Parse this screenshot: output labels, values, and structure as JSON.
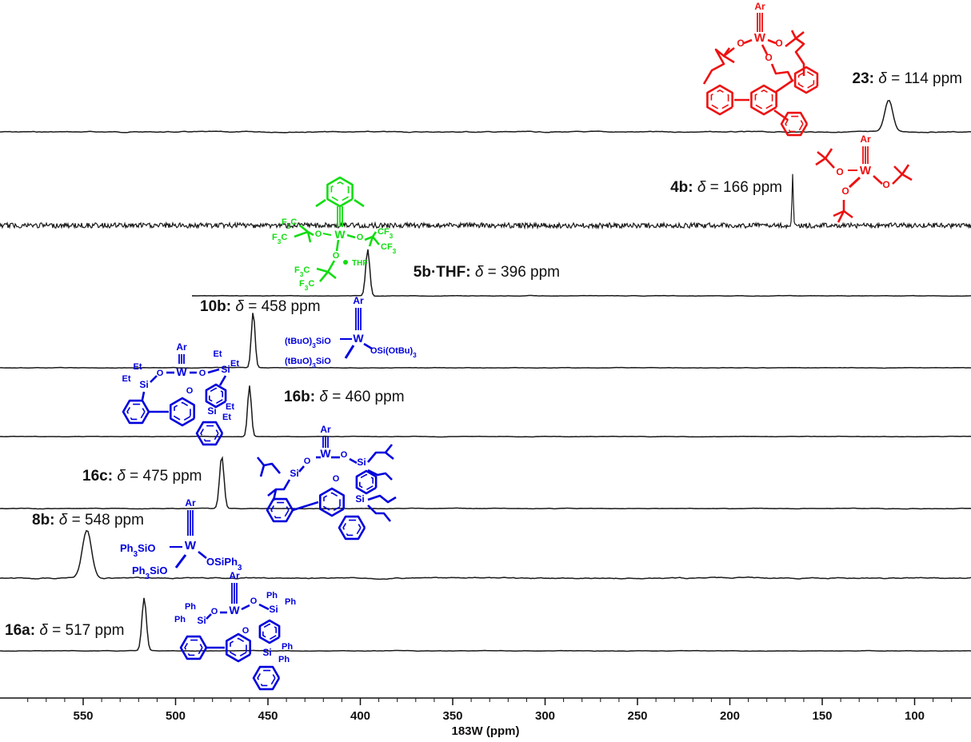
{
  "chart_data": {
    "type": "line",
    "title": "",
    "xlabel": "183W (ppm)",
    "ylabel": "",
    "xlim": [
      590,
      72
    ],
    "x_ticks": [
      550,
      500,
      450,
      400,
      350,
      300,
      250,
      200,
      150,
      100
    ],
    "grid": false,
    "colors": {
      "trace": "#1a1a1a",
      "red": "#ee1111",
      "green": "#11dd11",
      "blue": "#0000dd"
    },
    "series": [
      {
        "name": "23",
        "shift": "114",
        "peak_ppm": 114,
        "delta": "δ",
        "value_text": " = 114 ppm",
        "compound": "23:",
        "color": "red",
        "peak_width": 2.2,
        "peak_height": 40,
        "noise": 1.5
      },
      {
        "name": "4b",
        "shift": "166",
        "peak_ppm": 166,
        "delta": "δ",
        "value_text": " = 166 ppm",
        "compound": "4b:",
        "color": "red",
        "peak_width": 0.35,
        "peak_height": 66,
        "noise": 3.2
      },
      {
        "name": "5b·THF",
        "shift": "396",
        "peak_ppm": 396,
        "delta": "δ",
        "value_text": " = 396 ppm",
        "compound": "5b·THF:",
        "color": "green",
        "peak_width": 1.1,
        "peak_height": 58,
        "noise": 0.8
      },
      {
        "name": "10b",
        "shift": "458",
        "peak_ppm": 458,
        "delta": "δ",
        "value_text": " = 458 ppm",
        "compound": "10b:",
        "color": "blue",
        "peak_width": 1.0,
        "peak_height": 70,
        "noise": 0.8
      },
      {
        "name": "16b",
        "shift": "460",
        "peak_ppm": 460,
        "delta": "δ",
        "value_text": " = 460 ppm",
        "compound": "16b:",
        "color": "blue",
        "peak_width": 1.0,
        "peak_height": 64,
        "noise": 0.8
      },
      {
        "name": "16c",
        "shift": "475",
        "peak_ppm": 475,
        "delta": "δ",
        "value_text": " = 475 ppm",
        "compound": "16c:",
        "color": "blue",
        "peak_width": 1.2,
        "peak_height": 66,
        "noise": 1.0
      },
      {
        "name": "8b",
        "shift": "548",
        "peak_ppm": 548,
        "delta": "δ",
        "value_text": " = 548 ppm",
        "compound": "8b:",
        "color": "blue",
        "peak_width": 2.5,
        "peak_height": 60,
        "noise": 1.8
      },
      {
        "name": "16a",
        "shift": "517",
        "peak_ppm": 517,
        "delta": "δ",
        "value_text": " = 517 ppm",
        "compound": "16a:",
        "color": "blue",
        "peak_width": 1.2,
        "peak_height": 66,
        "noise": 0.8
      }
    ],
    "structures": {
      "ar": "Ar",
      "w": "W",
      "o": "O",
      "si": "Si",
      "thf": "THF",
      "et": "Et",
      "ph": "Ph",
      "f3c": "F",
      "cf3": "CF",
      "sub3": "3",
      "tbuo_sio": "(tBuO)",
      "sio": "SiO",
      "osi_otbu": "OSi(OtBu)",
      "ph3sio": "Ph",
      "osiph3": "OSiPh"
    }
  }
}
